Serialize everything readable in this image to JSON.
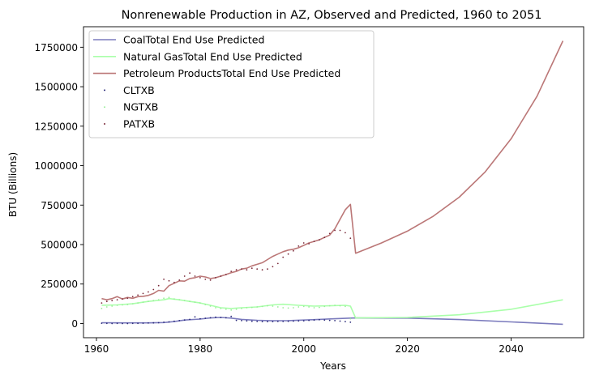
{
  "chart_data": {
    "type": "line",
    "title": "Nonrenewable Production in AZ, Observed and Predicted, 1960 to 2051",
    "xlabel": "Years",
    "ylabel": "BTU (Billions)",
    "xlim": [
      1957.5,
      2054
    ],
    "ylim": [
      -90000,
      1880000
    ],
    "xticks": [
      1960,
      1980,
      2000,
      2020,
      2040
    ],
    "yticks": [
      0,
      250000,
      500000,
      750000,
      1000000,
      1250000,
      1500000,
      1750000
    ],
    "legend_position": "top-left",
    "grid": false,
    "series": [
      {
        "name": "CoalTotal End Use Predicted",
        "kind": "line",
        "color": "#7b7bbd",
        "points": [
          [
            1961,
            5000
          ],
          [
            1965,
            4000
          ],
          [
            1970,
            4000
          ],
          [
            1973,
            6000
          ],
          [
            1975,
            12000
          ],
          [
            1977,
            22000
          ],
          [
            1980,
            28000
          ],
          [
            1982,
            35000
          ],
          [
            1984,
            38000
          ],
          [
            1986,
            34000
          ],
          [
            1988,
            26000
          ],
          [
            1991,
            20000
          ],
          [
            1994,
            17000
          ],
          [
            1997,
            18000
          ],
          [
            2000,
            22000
          ],
          [
            2003,
            26000
          ],
          [
            2006,
            30000
          ],
          [
            2009,
            34000
          ],
          [
            2010,
            35000
          ],
          [
            2020,
            34000
          ],
          [
            2030,
            25000
          ],
          [
            2040,
            10000
          ],
          [
            2050,
            -5000
          ]
        ]
      },
      {
        "name": "Natural GasTotal End Use Predicted",
        "kind": "line",
        "color": "#aaffaa",
        "points": [
          [
            1961,
            115000
          ],
          [
            1964,
            118000
          ],
          [
            1967,
            125000
          ],
          [
            1970,
            140000
          ],
          [
            1973,
            150000
          ],
          [
            1974,
            158000
          ],
          [
            1976,
            150000
          ],
          [
            1978,
            140000
          ],
          [
            1980,
            130000
          ],
          [
            1982,
            115000
          ],
          [
            1984,
            100000
          ],
          [
            1986,
            95000
          ],
          [
            1988,
            100000
          ],
          [
            1991,
            105000
          ],
          [
            1994,
            118000
          ],
          [
            1996,
            122000
          ],
          [
            1999,
            115000
          ],
          [
            2002,
            110000
          ],
          [
            2005,
            112000
          ],
          [
            2008,
            115000
          ],
          [
            2009,
            110000
          ],
          [
            2010,
            35000
          ],
          [
            2020,
            38000
          ],
          [
            2030,
            55000
          ],
          [
            2040,
            90000
          ],
          [
            2050,
            150000
          ]
        ]
      },
      {
        "name": "Petroleum ProductsTotal End Use Predicted",
        "kind": "line",
        "color": "#bb7777",
        "points": [
          [
            1961,
            158000
          ],
          [
            1962,
            150000
          ],
          [
            1963,
            158000
          ],
          [
            1964,
            170000
          ],
          [
            1965,
            155000
          ],
          [
            1966,
            165000
          ],
          [
            1967,
            160000
          ],
          [
            1968,
            170000
          ],
          [
            1969,
            172000
          ],
          [
            1970,
            178000
          ],
          [
            1971,
            190000
          ],
          [
            1972,
            210000
          ],
          [
            1973,
            205000
          ],
          [
            1974,
            240000
          ],
          [
            1975,
            255000
          ],
          [
            1976,
            270000
          ],
          [
            1977,
            268000
          ],
          [
            1978,
            285000
          ],
          [
            1979,
            290000
          ],
          [
            1980,
            300000
          ],
          [
            1981,
            295000
          ],
          [
            1982,
            285000
          ],
          [
            1983,
            290000
          ],
          [
            1984,
            300000
          ],
          [
            1985,
            310000
          ],
          [
            1986,
            322000
          ],
          [
            1987,
            330000
          ],
          [
            1988,
            345000
          ],
          [
            1989,
            350000
          ],
          [
            1990,
            365000
          ],
          [
            1991,
            375000
          ],
          [
            1992,
            385000
          ],
          [
            1993,
            405000
          ],
          [
            1994,
            425000
          ],
          [
            1995,
            440000
          ],
          [
            1996,
            455000
          ],
          [
            1997,
            465000
          ],
          [
            1998,
            470000
          ],
          [
            1999,
            480000
          ],
          [
            2000,
            495000
          ],
          [
            2001,
            510000
          ],
          [
            2002,
            520000
          ],
          [
            2003,
            530000
          ],
          [
            2004,
            545000
          ],
          [
            2005,
            560000
          ],
          [
            2006,
            600000
          ],
          [
            2007,
            660000
          ],
          [
            2008,
            720000
          ],
          [
            2009,
            755000
          ],
          [
            2010,
            445000
          ],
          [
            2015,
            510000
          ],
          [
            2020,
            585000
          ],
          [
            2025,
            680000
          ],
          [
            2030,
            800000
          ],
          [
            2035,
            960000
          ],
          [
            2040,
            1170000
          ],
          [
            2045,
            1440000
          ],
          [
            2050,
            1790000
          ]
        ]
      },
      {
        "name": "CLTXB",
        "kind": "scatter",
        "color": "#2a2a7a",
        "points": [
          [
            1961,
            2000
          ],
          [
            1962,
            1000
          ],
          [
            1963,
            0
          ],
          [
            1964,
            1000
          ],
          [
            1965,
            0
          ],
          [
            1966,
            0
          ],
          [
            1967,
            1000
          ],
          [
            1968,
            1000
          ],
          [
            1969,
            2000
          ],
          [
            1970,
            3000
          ],
          [
            1971,
            4000
          ],
          [
            1972,
            5000
          ],
          [
            1973,
            8000
          ],
          [
            1974,
            10000
          ],
          [
            1975,
            14000
          ],
          [
            1976,
            18000
          ],
          [
            1977,
            22000
          ],
          [
            1978,
            26000
          ],
          [
            1979,
            42000
          ],
          [
            1980,
            30000
          ],
          [
            1981,
            33000
          ],
          [
            1982,
            36000
          ],
          [
            1983,
            40000
          ],
          [
            1984,
            38000
          ],
          [
            1985,
            36000
          ],
          [
            1986,
            45000
          ],
          [
            1987,
            20000
          ],
          [
            1988,
            18000
          ],
          [
            1989,
            16000
          ],
          [
            1990,
            14000
          ],
          [
            1991,
            13000
          ],
          [
            1992,
            12000
          ],
          [
            1993,
            12000
          ],
          [
            1994,
            12000
          ],
          [
            1995,
            13000
          ],
          [
            1996,
            13000
          ],
          [
            1997,
            14000
          ],
          [
            1998,
            15000
          ],
          [
            1999,
            16000
          ],
          [
            2000,
            17000
          ],
          [
            2001,
            20000
          ],
          [
            2002,
            22000
          ],
          [
            2003,
            24000
          ],
          [
            2004,
            22000
          ],
          [
            2005,
            20000
          ],
          [
            2006,
            18000
          ],
          [
            2007,
            15000
          ],
          [
            2008,
            12000
          ],
          [
            2009,
            8000
          ]
        ]
      },
      {
        "name": "NGTXB",
        "kind": "scatter",
        "color": "#99ee99",
        "points": [
          [
            1961,
            95000
          ],
          [
            1962,
            105000
          ],
          [
            1963,
            110000
          ],
          [
            1964,
            115000
          ],
          [
            1965,
            118000
          ],
          [
            1966,
            120000
          ],
          [
            1967,
            125000
          ],
          [
            1968,
            130000
          ],
          [
            1969,
            135000
          ],
          [
            1970,
            140000
          ],
          [
            1971,
            145000
          ],
          [
            1972,
            150000
          ],
          [
            1973,
            160000
          ],
          [
            1974,
            165000
          ],
          [
            1975,
            155000
          ],
          [
            1976,
            150000
          ],
          [
            1977,
            145000
          ],
          [
            1978,
            140000
          ],
          [
            1979,
            135000
          ],
          [
            1980,
            130000
          ],
          [
            1981,
            120000
          ],
          [
            1982,
            110000
          ],
          [
            1983,
            100000
          ],
          [
            1984,
            95000
          ],
          [
            1985,
            90000
          ],
          [
            1986,
            85000
          ],
          [
            1987,
            90000
          ],
          [
            1988,
            95000
          ],
          [
            1989,
            100000
          ],
          [
            1990,
            102000
          ],
          [
            1991,
            105000
          ],
          [
            1992,
            108000
          ],
          [
            1993,
            112000
          ],
          [
            1994,
            110000
          ],
          [
            1995,
            105000
          ],
          [
            1996,
            100000
          ],
          [
            1997,
            98000
          ],
          [
            1998,
            100000
          ],
          [
            1999,
            105000
          ],
          [
            2000,
            108000
          ],
          [
            2001,
            105000
          ],
          [
            2002,
            100000
          ],
          [
            2003,
            102000
          ],
          [
            2004,
            108000
          ],
          [
            2005,
            112000
          ],
          [
            2006,
            115000
          ],
          [
            2007,
            112000
          ],
          [
            2008,
            108000
          ],
          [
            2009,
            30000
          ]
        ]
      },
      {
        "name": "PATXB",
        "kind": "scatter",
        "color": "#7a2a3a",
        "points": [
          [
            1961,
            130000
          ],
          [
            1962,
            140000
          ],
          [
            1963,
            145000
          ],
          [
            1964,
            150000
          ],
          [
            1965,
            155000
          ],
          [
            1966,
            160000
          ],
          [
            1967,
            170000
          ],
          [
            1968,
            180000
          ],
          [
            1969,
            190000
          ],
          [
            1970,
            200000
          ],
          [
            1971,
            215000
          ],
          [
            1972,
            240000
          ],
          [
            1973,
            280000
          ],
          [
            1974,
            270000
          ],
          [
            1975,
            260000
          ],
          [
            1976,
            275000
          ],
          [
            1977,
            300000
          ],
          [
            1978,
            320000
          ],
          [
            1979,
            300000
          ],
          [
            1980,
            290000
          ],
          [
            1981,
            280000
          ],
          [
            1982,
            275000
          ],
          [
            1983,
            290000
          ],
          [
            1984,
            300000
          ],
          [
            1985,
            310000
          ],
          [
            1986,
            330000
          ],
          [
            1987,
            340000
          ],
          [
            1988,
            345000
          ],
          [
            1989,
            340000
          ],
          [
            1990,
            350000
          ],
          [
            1991,
            345000
          ],
          [
            1992,
            340000
          ],
          [
            1993,
            345000
          ],
          [
            1994,
            360000
          ],
          [
            1995,
            380000
          ],
          [
            1996,
            420000
          ],
          [
            1997,
            440000
          ],
          [
            1998,
            460000
          ],
          [
            1999,
            490000
          ],
          [
            2000,
            510000
          ],
          [
            2001,
            505000
          ],
          [
            2002,
            520000
          ],
          [
            2003,
            530000
          ],
          [
            2004,
            545000
          ],
          [
            2005,
            570000
          ],
          [
            2006,
            590000
          ],
          [
            2007,
            590000
          ],
          [
            2008,
            575000
          ],
          [
            2009,
            540000
          ]
        ]
      }
    ]
  }
}
